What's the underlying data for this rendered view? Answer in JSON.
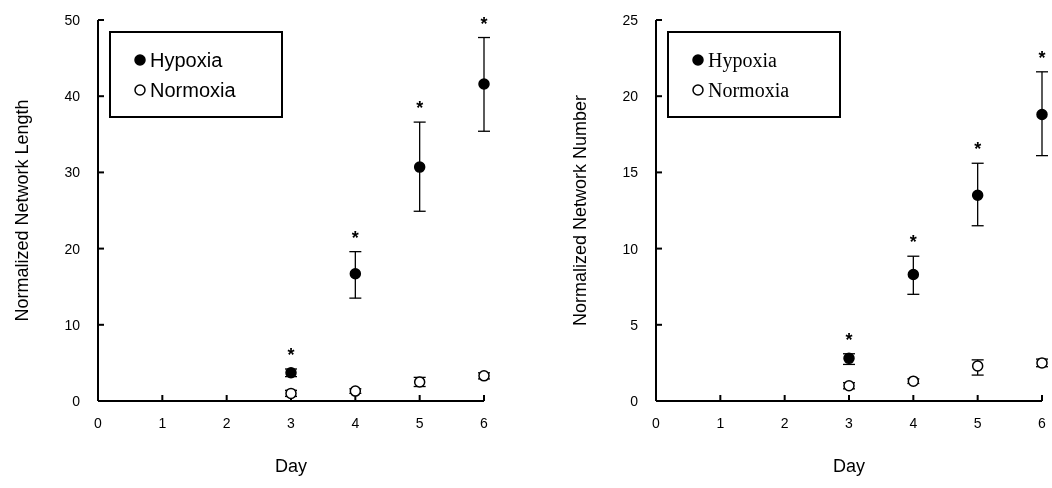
{
  "chart_data": [
    {
      "type": "scatter",
      "xlabel": "Day",
      "ylabel": "Normalized Network Length",
      "x": [
        3,
        4,
        5,
        6
      ],
      "xlim": [
        0,
        6
      ],
      "xticks": [
        0,
        1,
        2,
        3,
        4,
        5,
        6
      ],
      "ylim": [
        0,
        50
      ],
      "yticks": [
        0,
        10,
        20,
        30,
        40,
        50
      ],
      "marker": "circle",
      "legend": "top left",
      "grid": false,
      "series": [
        {
          "name": "Hypoxia",
          "color": "#000000",
          "values": [
            3.7,
            16.7,
            30.7,
            41.6
          ],
          "errors": [
            0.5,
            [
              13.5,
              19.6
            ],
            [
              24.9,
              36.6
            ],
            [
              35.4,
              47.7
            ]
          ]
        },
        {
          "name": "Normoxia",
          "color": "#ffffff",
          "values": [
            1.0,
            1.3,
            2.5,
            3.3
          ],
          "errors": [
            0.4,
            0.3,
            0.6,
            0.4
          ]
        }
      ],
      "annotations": [
        {
          "text": "*",
          "x": 3,
          "y": 4.2
        },
        {
          "text": "*",
          "x": 4,
          "y": 19.6
        },
        {
          "text": "*",
          "x": 5,
          "y": 36.6
        },
        {
          "text": "*",
          "x": 6,
          "y": 47.7
        }
      ]
    },
    {
      "type": "scatter",
      "xlabel": "Day",
      "ylabel": "Normalized Network Number",
      "x": [
        3,
        4,
        5,
        6
      ],
      "xlim": [
        0,
        6
      ],
      "xticks": [
        0,
        1,
        2,
        3,
        4,
        5,
        6
      ],
      "ylim": [
        0,
        25
      ],
      "yticks": [
        0,
        5,
        10,
        15,
        20,
        25
      ],
      "marker": "circle",
      "legend": "top left",
      "grid": false,
      "series": [
        {
          "name": "Hypoxia",
          "color": "#000000",
          "values": [
            2.8,
            8.3,
            13.5,
            18.8
          ],
          "errors": [
            [
              2.4,
              3.1
            ],
            [
              7.0,
              9.5
            ],
            [
              11.5,
              15.6
            ],
            [
              16.1,
              21.6
            ]
          ]
        },
        {
          "name": "Normoxia",
          "color": "#ffffff",
          "values": [
            1.0,
            1.3,
            2.3,
            2.5
          ],
          "errors": [
            0.2,
            0.15,
            [
              1.7,
              2.7
            ],
            0.25
          ]
        }
      ],
      "annotations": [
        {
          "text": "*",
          "x": 3,
          "y": 3.1
        },
        {
          "text": "*",
          "x": 4,
          "y": 9.5
        },
        {
          "text": "*",
          "x": 5,
          "y": 15.6
        },
        {
          "text": "*",
          "x": 6,
          "y": 21.6
        }
      ]
    }
  ]
}
